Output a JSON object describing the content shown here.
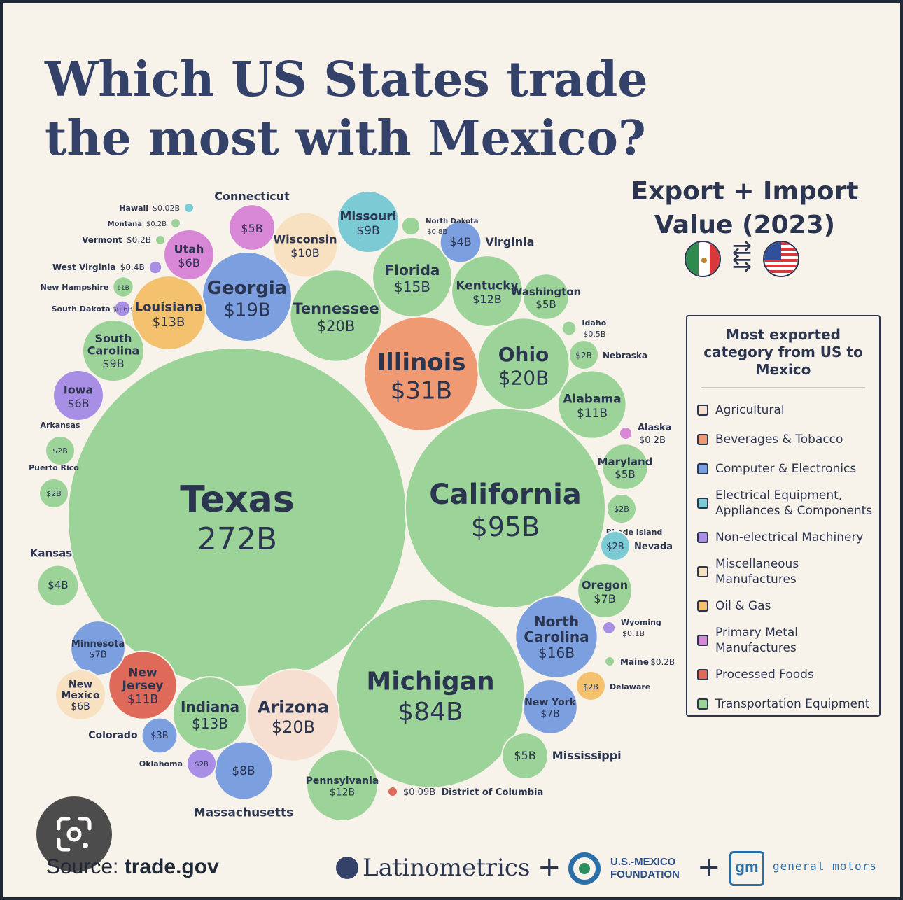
{
  "title": "Which US States trade the most with Mexico?",
  "subtitle": "Export + Import Value (2023)",
  "legend": {
    "title": "Most exported category from US to Mexico",
    "items": [
      {
        "label": "Agricultural",
        "color": "#f6dfd0"
      },
      {
        "label": "Beverages & Tobacco",
        "color": "#ef9a73"
      },
      {
        "label": "Computer & Electronics",
        "color": "#7b9fdf"
      },
      {
        "label": "Electrical Equipment, Appliances & Components",
        "color": "#7ccbd4"
      },
      {
        "label": "Non-electrical Machinery",
        "color": "#a98ee6"
      },
      {
        "label": "Miscellaneous Manufactures",
        "color": "#f8e1c0"
      },
      {
        "label": "Oil & Gas",
        "color": "#f4c26e"
      },
      {
        "label": "Primary Metal Manufactures",
        "color": "#d886d6"
      },
      {
        "label": "Processed Foods",
        "color": "#e06a5a"
      },
      {
        "label": "Transportation Equipment",
        "color": "#9bd398"
      }
    ]
  },
  "source": {
    "prefix": "Source:",
    "value": "trade.gov"
  },
  "logos": {
    "latinometrics": "Latinometrics",
    "usmf_line1": "U.S.-MEXICO",
    "usmf_line2": "FOUNDATION",
    "gm_mark": "gm",
    "gm_text": "general motors"
  },
  "chart_data": {
    "type": "bubble",
    "title": "Which US States trade the most with Mexico?",
    "subtitle": "Export + Import Value (2023)",
    "unit": "USD billions",
    "points": [
      {
        "state": "Texas",
        "value": 272,
        "label": "272B",
        "category": "Transportation Equipment"
      },
      {
        "state": "California",
        "value": 95,
        "label": "$95B",
        "category": "Transportation Equipment"
      },
      {
        "state": "Michigan",
        "value": 84,
        "label": "$84B",
        "category": "Transportation Equipment"
      },
      {
        "state": "Illinois",
        "value": 31,
        "label": "$31B",
        "category": "Beverages & Tobacco"
      },
      {
        "state": "Ohio",
        "value": 20,
        "label": "$20B",
        "category": "Transportation Equipment"
      },
      {
        "state": "Tennessee",
        "value": 20,
        "label": "$20B",
        "category": "Transportation Equipment"
      },
      {
        "state": "Arizona",
        "value": 20,
        "label": "$20B",
        "category": "Agricultural"
      },
      {
        "state": "Georgia",
        "value": 19,
        "label": "$19B",
        "category": "Computer & Electronics"
      },
      {
        "state": "North Carolina",
        "value": 16,
        "label": "$16B",
        "category": "Computer & Electronics"
      },
      {
        "state": "Florida",
        "value": 15,
        "label": "$15B",
        "category": "Transportation Equipment"
      },
      {
        "state": "Louisiana",
        "value": 13,
        "label": "$13B",
        "category": "Oil & Gas"
      },
      {
        "state": "Indiana",
        "value": 13,
        "label": "$13B",
        "category": "Transportation Equipment"
      },
      {
        "state": "Kentucky",
        "value": 12,
        "label": "$12B",
        "category": "Transportation Equipment"
      },
      {
        "state": "Pennsylvania",
        "value": 12,
        "label": "$12B",
        "category": "Transportation Equipment"
      },
      {
        "state": "Alabama",
        "value": 11,
        "label": "$11B",
        "category": "Transportation Equipment"
      },
      {
        "state": "New Jersey",
        "value": 11,
        "label": "$11B",
        "category": "Processed Foods"
      },
      {
        "state": "Wisconsin",
        "value": 10,
        "label": "$10B",
        "category": "Miscellaneous Manufactures"
      },
      {
        "state": "Missouri",
        "value": 9,
        "label": "$9B",
        "category": "Electrical Equipment, Appliances & Components"
      },
      {
        "state": "South Carolina",
        "value": 9,
        "label": "$9B",
        "category": "Transportation Equipment"
      },
      {
        "state": "Massachusetts",
        "value": 8,
        "label": "$8B",
        "category": "Computer & Electronics"
      },
      {
        "state": "Minnesota",
        "value": 7,
        "label": "$7B",
        "category": "Computer & Electronics"
      },
      {
        "state": "Oregon",
        "value": 7,
        "label": "$7B",
        "category": "Transportation Equipment"
      },
      {
        "state": "New York",
        "value": 7,
        "label": "$7B",
        "category": "Computer & Electronics"
      },
      {
        "state": "Utah",
        "value": 6,
        "label": "$6B",
        "category": "Primary Metal Manufactures"
      },
      {
        "state": "Iowa",
        "value": 6,
        "label": "$6B",
        "category": "Non-electrical Machinery"
      },
      {
        "state": "New Mexico",
        "value": 6,
        "label": "$6B",
        "category": "Miscellaneous Manufactures"
      },
      {
        "state": "Connecticut",
        "value": 5,
        "label": "$5B",
        "category": "Primary Metal Manufactures"
      },
      {
        "state": "Washington",
        "value": 5,
        "label": "$5B",
        "category": "Transportation Equipment"
      },
      {
        "state": "Maryland",
        "value": 5,
        "label": "$5B",
        "category": "Transportation Equipment"
      },
      {
        "state": "Mississippi",
        "value": 5,
        "label": "$5B",
        "category": "Transportation Equipment"
      },
      {
        "state": "Virginia",
        "value": 4,
        "label": "$4B",
        "category": "Computer & Electronics"
      },
      {
        "state": "Kansas",
        "value": 4,
        "label": "$4B",
        "category": "Transportation Equipment"
      },
      {
        "state": "Colorado",
        "value": 3,
        "label": "$3B",
        "category": "Computer & Electronics"
      },
      {
        "state": "Arkansas",
        "value": 2,
        "label": "$2B",
        "category": "Transportation Equipment"
      },
      {
        "state": "Puerto Rico",
        "value": 2,
        "label": "$2B",
        "category": "Transportation Equipment"
      },
      {
        "state": "Nebraska",
        "value": 2,
        "label": "$2B",
        "category": "Transportation Equipment"
      },
      {
        "state": "Rhode Island",
        "value": 2,
        "label": "$2B",
        "category": "Transportation Equipment"
      },
      {
        "state": "Nevada",
        "value": 2,
        "label": "$2B",
        "category": "Electrical Equipment, Appliances & Components"
      },
      {
        "state": "Delaware",
        "value": 2,
        "label": "$2B",
        "category": "Oil & Gas"
      },
      {
        "state": "Oklahoma",
        "value": 2,
        "label": "$2B",
        "category": "Non-electrical Machinery"
      },
      {
        "state": "New Hampshire",
        "value": 1,
        "label": "$1B",
        "category": "Transportation Equipment"
      },
      {
        "state": "North Dakota",
        "value": 0.8,
        "label": "$0.8B",
        "category": "Transportation Equipment"
      },
      {
        "state": "South Dakota",
        "value": 0.6,
        "label": "$0.6B",
        "category": "Non-electrical Machinery"
      },
      {
        "state": "Idaho",
        "value": 0.5,
        "label": "$0.5B",
        "category": "Transportation Equipment"
      },
      {
        "state": "West Virginia",
        "value": 0.4,
        "label": "$0.4B",
        "category": "Non-electrical Machinery"
      },
      {
        "state": "Montana",
        "value": 0.2,
        "label": "$0.2B",
        "category": "Transportation Equipment"
      },
      {
        "state": "Vermont",
        "value": 0.2,
        "label": "$0.2B",
        "category": "Transportation Equipment"
      },
      {
        "state": "Alaska",
        "value": 0.2,
        "label": "$0.2B",
        "category": "Primary Metal Manufactures"
      },
      {
        "state": "Maine",
        "value": 0.2,
        "label": "$0.2B",
        "category": "Transportation Equipment"
      },
      {
        "state": "Wyoming",
        "value": 0.1,
        "label": "$0.1B",
        "category": "Non-electrical Machinery"
      },
      {
        "state": "District of Columbia",
        "value": 0.09,
        "label": "$0.09B",
        "category": "Processed Foods"
      },
      {
        "state": "Hawaii",
        "value": 0.02,
        "label": "$0.02B",
        "category": "Electrical Equipment, Appliances & Components"
      }
    ]
  }
}
